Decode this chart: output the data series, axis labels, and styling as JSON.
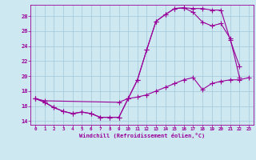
{
  "bg_color": "#cde8f0",
  "grid_color": "#a0c8d8",
  "line_color": "#990099",
  "xlabel": "Windchill (Refroidissement éolien,°C)",
  "xlim": [
    -0.5,
    23.5
  ],
  "ylim": [
    13.5,
    29.5
  ],
  "yticks": [
    14,
    16,
    18,
    20,
    22,
    24,
    26,
    28
  ],
  "xticks": [
    0,
    1,
    2,
    3,
    4,
    5,
    6,
    7,
    8,
    9,
    10,
    11,
    12,
    13,
    14,
    15,
    16,
    17,
    18,
    19,
    20,
    21,
    22,
    23
  ],
  "curve1_x": [
    0,
    1,
    2,
    3,
    4,
    5,
    6,
    7,
    8,
    9,
    10,
    11,
    12,
    13,
    14,
    15,
    16,
    17,
    18,
    19,
    20,
    21,
    22
  ],
  "curve1_y": [
    17.0,
    16.5,
    15.8,
    15.3,
    15.0,
    15.2,
    15.0,
    14.5,
    14.5,
    14.5,
    17.0,
    19.5,
    23.5,
    27.3,
    28.2,
    29.0,
    29.1,
    29.0,
    29.0,
    28.8,
    28.8,
    24.8,
    21.3
  ],
  "curve2_x": [
    0,
    1,
    2,
    3,
    4,
    5,
    6,
    7,
    8,
    9,
    10,
    11,
    12,
    13,
    14,
    15,
    16,
    17,
    18,
    19,
    20,
    21,
    22
  ],
  "curve2_y": [
    17.0,
    16.5,
    15.8,
    15.3,
    15.0,
    15.2,
    15.0,
    14.5,
    14.5,
    14.5,
    17.0,
    19.5,
    23.5,
    27.3,
    28.2,
    29.0,
    29.1,
    28.5,
    27.2,
    26.7,
    27.0,
    25.0,
    19.8
  ],
  "curve3_x": [
    0,
    1,
    9,
    10,
    11,
    12,
    13,
    14,
    15,
    16,
    17,
    18,
    19,
    20,
    21,
    22,
    23
  ],
  "curve3_y": [
    17.0,
    16.7,
    16.5,
    17.0,
    17.2,
    17.5,
    18.0,
    18.5,
    19.0,
    19.5,
    19.8,
    18.2,
    19.0,
    19.3,
    19.5,
    19.5,
    19.8
  ]
}
